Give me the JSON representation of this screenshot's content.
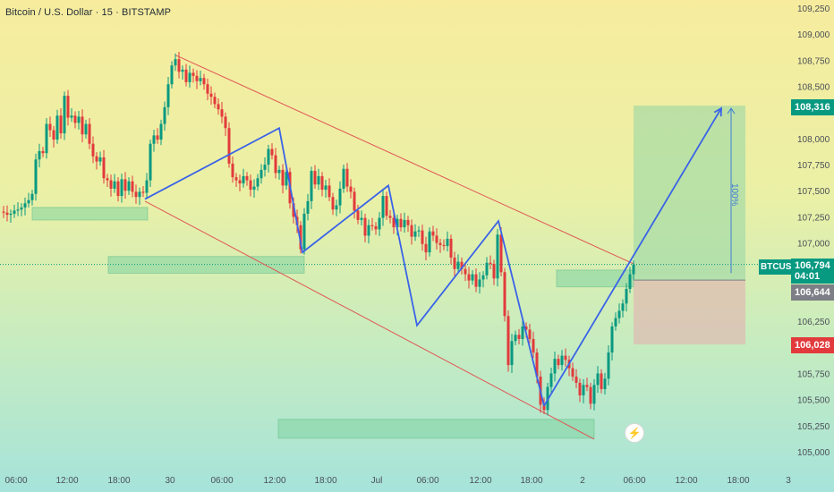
{
  "symbol_title": "Bitcoin / U.S. Dollar · 15 · BITSTAMP",
  "chart_data": {
    "type": "candlestick",
    "title": "Bitcoin / U.S. Dollar · 15 · BITSTAMP",
    "y_ticks": [
      109250,
      109000,
      108750,
      108500,
      108250,
      108000,
      107750,
      107500,
      107250,
      107000,
      106750,
      106500,
      106250,
      106000,
      105750,
      105500,
      105250,
      105000
    ],
    "y_tick_labels": [
      "109,250",
      "109,000",
      "108,750",
      "108,500",
      "",
      "108,000",
      "107,750",
      "107,500",
      "107,250",
      "107,000",
      "",
      "",
      "106,250",
      "",
      "105,750",
      "105,500",
      "105,250",
      "105,000"
    ],
    "ylim": [
      105000,
      109250
    ],
    "x_tick_labels": [
      "06:00",
      "12:00",
      "18:00",
      "30",
      "06:00",
      "12:00",
      "18:00",
      "Jul",
      "06:00",
      "12:00",
      "18:00",
      "2",
      "06:00",
      "12:00",
      "18:00",
      "3"
    ],
    "price_series": [
      [
        0,
        107300
      ],
      [
        4,
        107290
      ],
      [
        8,
        107270
      ],
      [
        12,
        107280
      ],
      [
        16,
        107310
      ],
      [
        20,
        107320
      ],
      [
        24,
        107340
      ],
      [
        28,
        107380
      ],
      [
        32,
        107410
      ],
      [
        36,
        107470
      ],
      [
        40,
        107800
      ],
      [
        44,
        107880
      ],
      [
        48,
        107860
      ],
      [
        52,
        108140
      ],
      [
        56,
        108080
      ],
      [
        60,
        107990
      ],
      [
        64,
        108220
      ],
      [
        68,
        108050
      ],
      [
        72,
        108410
      ],
      [
        76,
        108200
      ],
      [
        80,
        108220
      ],
      [
        84,
        108150
      ],
      [
        88,
        108210
      ],
      [
        92,
        108040
      ],
      [
        96,
        108140
      ],
      [
        100,
        107950
      ],
      [
        104,
        107830
      ],
      [
        108,
        107780
      ],
      [
        112,
        107820
      ],
      [
        116,
        107620
      ],
      [
        120,
        107600
      ],
      [
        124,
        107520
      ],
      [
        128,
        107590
      ],
      [
        132,
        107450
      ],
      [
        136,
        107610
      ],
      [
        140,
        107500
      ],
      [
        144,
        107590
      ],
      [
        148,
        107490
      ],
      [
        152,
        107440
      ],
      [
        156,
        107490
      ],
      [
        160,
        107480
      ],
      [
        164,
        107600
      ],
      [
        168,
        107950
      ],
      [
        172,
        108030
      ],
      [
        176,
        107990
      ],
      [
        180,
        108140
      ],
      [
        184,
        108300
      ],
      [
        188,
        108520
      ],
      [
        192,
        108700
      ],
      [
        196,
        108760
      ],
      [
        200,
        108640
      ],
      [
        204,
        108660
      ],
      [
        208,
        108540
      ],
      [
        212,
        108630
      ],
      [
        216,
        108600
      ],
      [
        220,
        108550
      ],
      [
        224,
        108580
      ],
      [
        228,
        108520
      ],
      [
        232,
        108430
      ],
      [
        236,
        108400
      ],
      [
        240,
        108330
      ],
      [
        244,
        108280
      ],
      [
        248,
        108210
      ],
      [
        252,
        108100
      ],
      [
        256,
        107760
      ],
      [
        260,
        107630
      ],
      [
        264,
        107600
      ],
      [
        268,
        107570
      ],
      [
        272,
        107640
      ],
      [
        276,
        107600
      ],
      [
        280,
        107510
      ],
      [
        284,
        107540
      ],
      [
        288,
        107620
      ],
      [
        292,
        107700
      ],
      [
        296,
        107750
      ],
      [
        300,
        107900
      ],
      [
        304,
        107840
      ],
      [
        308,
        107670
      ],
      [
        312,
        107700
      ],
      [
        316,
        107550
      ],
      [
        320,
        107680
      ],
      [
        324,
        107380
      ],
      [
        328,
        107250
      ],
      [
        332,
        107170
      ],
      [
        336,
        106940
      ],
      [
        340,
        107280
      ],
      [
        344,
        107400
      ],
      [
        348,
        107690
      ],
      [
        352,
        107560
      ],
      [
        356,
        107640
      ],
      [
        360,
        107510
      ],
      [
        364,
        107550
      ],
      [
        368,
        107440
      ],
      [
        372,
        107320
      ],
      [
        376,
        107360
      ],
      [
        380,
        107520
      ],
      [
        384,
        107710
      ],
      [
        388,
        107540
      ],
      [
        392,
        107490
      ],
      [
        396,
        107310
      ],
      [
        400,
        107220
      ],
      [
        404,
        107240
      ],
      [
        408,
        107070
      ],
      [
        412,
        107170
      ],
      [
        416,
        107160
      ],
      [
        420,
        107130
      ],
      [
        424,
        107240
      ],
      [
        428,
        107450
      ],
      [
        432,
        107260
      ],
      [
        436,
        107240
      ],
      [
        440,
        107150
      ],
      [
        444,
        107230
      ],
      [
        448,
        107150
      ],
      [
        452,
        107220
      ],
      [
        456,
        107170
      ],
      [
        460,
        107060
      ],
      [
        464,
        107110
      ],
      [
        468,
        107120
      ],
      [
        472,
        106990
      ],
      [
        476,
        106910
      ],
      [
        480,
        107110
      ],
      [
        484,
        107070
      ],
      [
        488,
        107000
      ],
      [
        492,
        106980
      ],
      [
        496,
        106970
      ],
      [
        500,
        107040
      ],
      [
        504,
        106860
      ],
      [
        508,
        106750
      ],
      [
        512,
        106820
      ],
      [
        516,
        106750
      ],
      [
        520,
        106700
      ],
      [
        524,
        106640
      ],
      [
        528,
        106700
      ],
      [
        532,
        106580
      ],
      [
        536,
        106650
      ],
      [
        540,
        106690
      ],
      [
        544,
        106810
      ],
      [
        548,
        106800
      ],
      [
        552,
        106660
      ],
      [
        556,
        107080
      ],
      [
        560,
        106720
      ],
      [
        564,
        106300
      ],
      [
        568,
        105830
      ],
      [
        572,
        106060
      ],
      [
        576,
        106120
      ],
      [
        580,
        106080
      ],
      [
        584,
        106200
      ],
      [
        588,
        106170
      ],
      [
        592,
        106080
      ],
      [
        596,
        105950
      ],
      [
        600,
        105720
      ],
      [
        604,
        105450
      ],
      [
        608,
        105400
      ],
      [
        612,
        105620
      ],
      [
        616,
        105750
      ],
      [
        620,
        105890
      ],
      [
        624,
        105830
      ],
      [
        628,
        105920
      ],
      [
        632,
        105880
      ],
      [
        636,
        105800
      ],
      [
        640,
        105720
      ],
      [
        644,
        105660
      ],
      [
        648,
        105540
      ],
      [
        652,
        105640
      ],
      [
        656,
        105620
      ],
      [
        660,
        105460
      ],
      [
        664,
        105640
      ],
      [
        668,
        105750
      ],
      [
        672,
        105600
      ],
      [
        676,
        105700
      ],
      [
        680,
        105950
      ],
      [
        684,
        106200
      ],
      [
        688,
        106280
      ],
      [
        692,
        106350
      ],
      [
        696,
        106420
      ],
      [
        700,
        106560
      ],
      [
        704,
        106700
      ],
      [
        708,
        106794
      ]
    ],
    "channel_upper": [
      [
        196,
        108800
      ],
      [
        708,
        106800
      ]
    ],
    "channel_lower": [
      [
        162,
        107400
      ],
      [
        664,
        105120
      ]
    ],
    "zigzag": [
      [
        162,
        107420
      ],
      [
        312,
        108100
      ],
      [
        338,
        106910
      ],
      [
        434,
        107550
      ],
      [
        466,
        106210
      ],
      [
        557,
        107210
      ],
      [
        608,
        105440
      ]
    ],
    "projection": [
      [
        608,
        105440
      ],
      [
        806,
        108290
      ]
    ],
    "zones": [
      {
        "x0": 36,
        "x1": 165,
        "y0": 107340,
        "y1": 107220
      },
      {
        "x0": 121,
        "x1": 340,
        "y0": 106870,
        "y1": 106710
      },
      {
        "x0": 311,
        "x1": 664,
        "y0": 105310,
        "y1": 105130
      },
      {
        "x0": 622,
        "x1": 708,
        "y0": 106740,
        "y1": 106580
      }
    ],
    "target_box": {
      "x0": 708,
      "x1": 833,
      "y_top": 108316,
      "y_mid": 106644,
      "y_bot": 106028
    },
    "measure_arrow": {
      "x": 817,
      "y0": 106710,
      "y1": 108290
    },
    "current_price": 106794,
    "current_price_line": true,
    "labels": {
      "target": "108,316",
      "entry": "106,644",
      "stop": "106,028",
      "symbol": "BTCUSD",
      "price": "106,794",
      "countdown": "04:01",
      "percent": "100%"
    }
  },
  "colors": {
    "up": "#089981",
    "down": "#e23a3c",
    "channel": "#e05555",
    "zigzag": "#3a63e8",
    "zone_fill": "#7fd4a0",
    "target_fill": "#9fd9a6",
    "stop_fill": "#e2b0b0"
  }
}
